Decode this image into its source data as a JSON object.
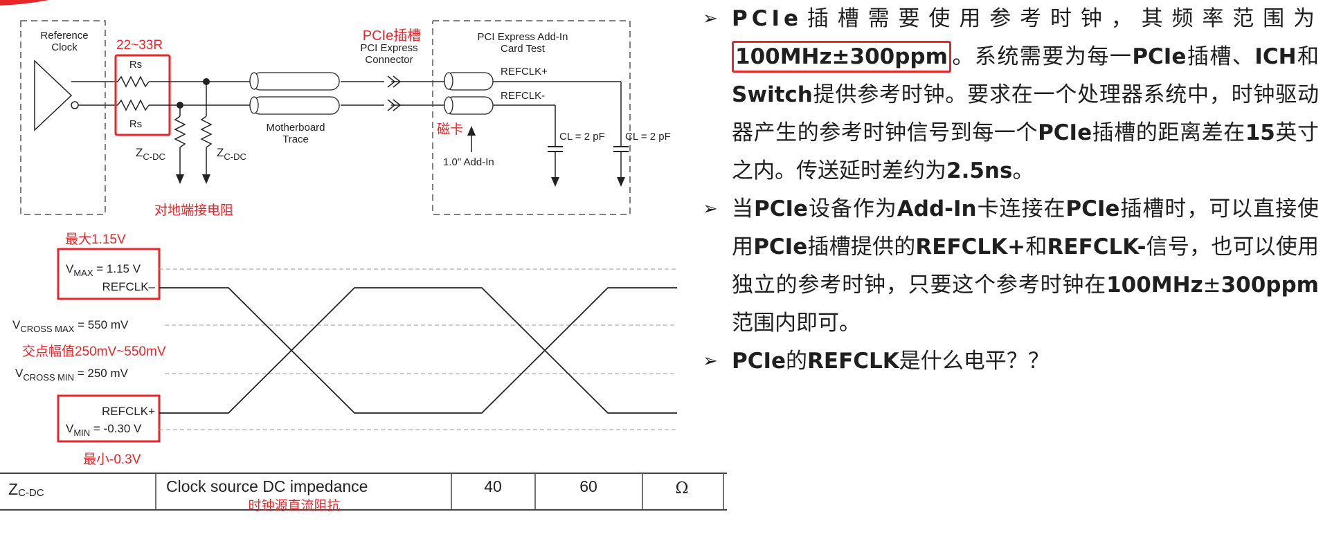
{
  "circuit": {
    "reference_clock": [
      "Reference",
      "Clock"
    ],
    "resistor_range": "22~33R",
    "rs_top": "Rs",
    "rs_bottom": "Rs",
    "slot_annotation": "PCIe插槽",
    "connector": [
      "PCI Express",
      "Connector"
    ],
    "addin_card": [
      "PCI Express Add-In",
      "Card Test"
    ],
    "refclk_pos": "REFCLK+",
    "refclk_neg": "REFCLK-",
    "motherboard_trace": [
      "Motherboard",
      "Trace"
    ],
    "bead_annotation": "磁卡",
    "addin_length": "1.0\" Add-In",
    "cl1": "CL = 2 pF",
    "cl2": "CL = 2 pF",
    "zcdc_sub": "C-DC",
    "z_letter": "Z",
    "ground_annotation": "对地端接电阻"
  },
  "waveform": {
    "max_annotation": "最大1.15V",
    "vmax_sub": "MAX",
    "vmax_value": " = 1.15 V",
    "refclk_minus": "REFCLK–",
    "vcross_max_sub": "CROSS MAX",
    "vcross_max_value": " = 550 mV",
    "cross_annotation": "交点幅值250mV~550mV",
    "vcross_min_sub": "CROSS MIN",
    "vcross_min_value": " = 250 mV",
    "refclk_plus": "REFCLK+",
    "vmin_sub": "MIN",
    "vmin_value": " = -0.30 V",
    "min_annotation": "最小-0.3V",
    "v_letter": "V"
  },
  "table_row": {
    "symbol_main": "Z",
    "symbol_sub": "C-DC",
    "description": "Clock source DC impedance",
    "min": "40",
    "max": "60",
    "unit": "Ω",
    "annotation": "时钟源直流阻抗"
  },
  "bullets": [
    {
      "p1_bold": "PCIe",
      "p1_text": "插槽需要使用参考时钟，其频率范围为",
      "p1_boxed": "100MHz±300ppm",
      "p1_text2": "。系统需要为每一",
      "p1_bold2": "PCIe",
      "p1_text3": "插槽、",
      "p1_bold3": "ICH",
      "p1_text4": "和",
      "p1_bold4": "Switch",
      "p1_text5": "提供参考时钟。要求在一个处理器系统中，时钟驱动器产生的参考时钟信号到每一个",
      "p1_bold5": "PCIe",
      "p1_text6": "插槽的距离差在",
      "p1_bold6": "15",
      "p1_text7": "英寸之内。传送延时差约为",
      "p1_bold7": "2.5ns",
      "p1_text8": "。"
    },
    {
      "p2_text": "当",
      "p2_bold": "PCIe",
      "p2_text2": "设备作为",
      "p2_bold2": "Add-In",
      "p2_text3": "卡连接在",
      "p2_bold3": "PCIe",
      "p2_text4": "插槽时，可以直接使用",
      "p2_bold4": "PCIe",
      "p2_text5": "插槽提供的",
      "p2_bold5": "REFCLK+",
      "p2_text6": "和",
      "p2_bold6": "REFCLK-",
      "p2_text7": "信号，也可以使用独立的参考时钟，只要这个参考时钟在",
      "p2_bold7": "100MHz",
      "p2_text8": "±",
      "p2_bold8": "300ppm",
      "p2_text9": "范围内即可。"
    },
    {
      "p3_bold": "PCIe",
      "p3_text": "的",
      "p3_bold2": "REFCLK",
      "p3_text2": "是什么电平？？"
    }
  ],
  "bullet_mark": "➢",
  "colors": {
    "annotation_red": "#e8262a",
    "line": "#222222",
    "dashed": "#999999"
  }
}
